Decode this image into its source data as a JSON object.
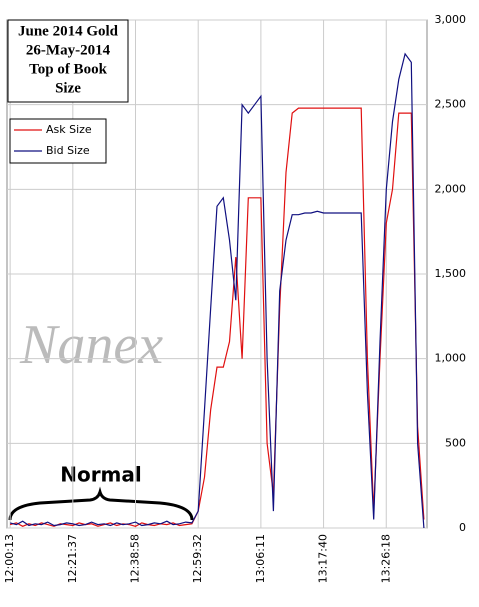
{
  "chart_data": {
    "type": "line",
    "title_lines": [
      "June 2014 Gold",
      "26-May-2014",
      "Top of Book",
      "Size"
    ],
    "watermark": "Nanex",
    "annotation": "Normal",
    "xlim": [
      -0.5,
      66.5
    ],
    "xticks": [
      {
        "value": 0,
        "label": "12:00:13"
      },
      {
        "value": 10,
        "label": "12:21:37"
      },
      {
        "value": 20,
        "label": "12:38:58"
      },
      {
        "value": 30,
        "label": "12:59:32"
      },
      {
        "value": 40,
        "label": "13:06:11"
      },
      {
        "value": 50,
        "label": "13:17:40"
      },
      {
        "value": 60,
        "label": "13:26:18"
      }
    ],
    "ylim": [
      0,
      3000
    ],
    "yticks": [
      0,
      500,
      {
        "value": 1000,
        "label": "1,000"
      },
      {
        "value": 1500,
        "label": "1,500"
      },
      {
        "value": 2000,
        "label": "2,000"
      },
      {
        "value": 2500,
        "label": "2,500"
      },
      {
        "value": 3000,
        "label": "3,000"
      }
    ],
    "grid": true,
    "legend": "upper left",
    "series": [
      {
        "name": "Ask Size",
        "color": "#e01010",
        "values": [
          20,
          30,
          10,
          25,
          15,
          30,
          20,
          10,
          25,
          20,
          15,
          30,
          20,
          25,
          10,
          20,
          30,
          15,
          25,
          20,
          10,
          30,
          20,
          15,
          25,
          20,
          30,
          15,
          20,
          25,
          100,
          300,
          700,
          950,
          950,
          1100,
          1600,
          1000,
          1950,
          1950,
          1950,
          500,
          200,
          1300,
          2100,
          2450,
          2480,
          2480,
          2480,
          2480,
          2480,
          2480,
          2480,
          2480,
          2480,
          2480,
          2480,
          1000,
          100,
          1000,
          1800,
          2000,
          2450,
          2450,
          2450,
          600,
          50
        ]
      },
      {
        "name": "Bid Size",
        "color": "#101080",
        "values": [
          30,
          20,
          40,
          15,
          25,
          20,
          35,
          15,
          20,
          30,
          25,
          15,
          20,
          35,
          20,
          25,
          15,
          30,
          20,
          25,
          35,
          15,
          20,
          30,
          25,
          40,
          20,
          25,
          35,
          30,
          100,
          700,
          1300,
          1900,
          1950,
          1700,
          1345,
          2500,
          2450,
          2500,
          2550,
          1000,
          100,
          1400,
          1700,
          1850,
          1850,
          1860,
          1860,
          1870,
          1860,
          1860,
          1860,
          1860,
          1860,
          1860,
          1860,
          800,
          50,
          1100,
          2000,
          2400,
          2650,
          2800,
          2750,
          500,
          0
        ]
      }
    ]
  }
}
